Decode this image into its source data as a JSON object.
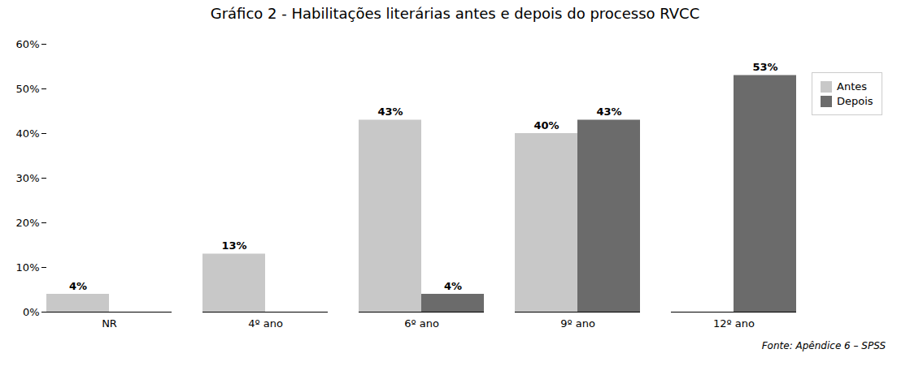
{
  "chart_data": {
    "type": "bar",
    "title": "Gráfico 2 - Habilitações literárias antes e depois do processo RVCC",
    "categories": [
      "NR",
      "4º ano",
      "6º ano",
      "9º ano",
      "12º ano"
    ],
    "series": [
      {
        "name": "Antes",
        "color": "#c8c8c8",
        "values": [
          4,
          13,
          43,
          40,
          0
        ],
        "value_labels": [
          "4%",
          "13%",
          "43%",
          "40%",
          null
        ]
      },
      {
        "name": "Depois",
        "color": "#6b6b6b",
        "values": [
          0,
          0,
          4,
          43,
          53
        ],
        "value_labels": [
          null,
          null,
          "4%",
          "43%",
          "53%"
        ]
      }
    ],
    "ylim": [
      0,
      60
    ],
    "yticks": [
      {
        "value": 0,
        "label": "0%"
      },
      {
        "value": 10,
        "label": "10%"
      },
      {
        "value": 20,
        "label": "20%"
      },
      {
        "value": 30,
        "label": "30%"
      },
      {
        "value": 40,
        "label": "40%"
      },
      {
        "value": 50,
        "label": "50%"
      },
      {
        "value": 60,
        "label": "60%"
      }
    ],
    "data_labels": true,
    "grid": false,
    "legend": "right",
    "annotations": [
      "Fonte: Apêndice 6 – SPSS"
    ]
  }
}
